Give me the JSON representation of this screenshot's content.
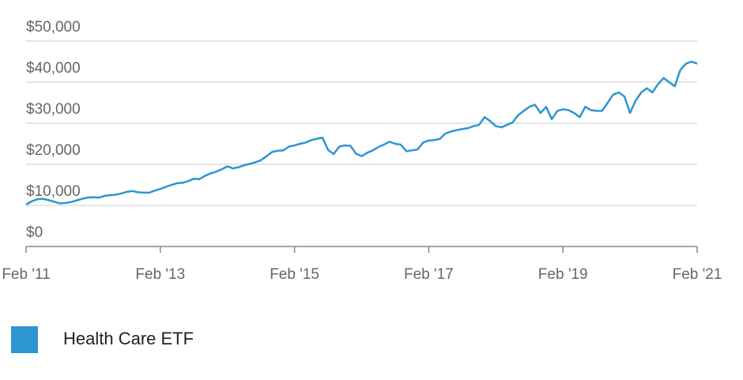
{
  "chart_data": {
    "type": "line",
    "x": [
      "2011-02",
      "2011-03",
      "2011-04",
      "2011-05",
      "2011-06",
      "2011-07",
      "2011-08",
      "2011-09",
      "2011-10",
      "2011-11",
      "2011-12",
      "2012-01",
      "2012-02",
      "2012-03",
      "2012-04",
      "2012-05",
      "2012-06",
      "2012-07",
      "2012-08",
      "2012-09",
      "2012-10",
      "2012-11",
      "2012-12",
      "2013-01",
      "2013-02",
      "2013-03",
      "2013-04",
      "2013-05",
      "2013-06",
      "2013-07",
      "2013-08",
      "2013-09",
      "2013-10",
      "2013-11",
      "2013-12",
      "2014-01",
      "2014-02",
      "2014-03",
      "2014-04",
      "2014-05",
      "2014-06",
      "2014-07",
      "2014-08",
      "2014-09",
      "2014-10",
      "2014-11",
      "2014-12",
      "2015-01",
      "2015-02",
      "2015-03",
      "2015-04",
      "2015-05",
      "2015-06",
      "2015-07",
      "2015-08",
      "2015-09",
      "2015-10",
      "2015-11",
      "2015-12",
      "2016-01",
      "2016-02",
      "2016-03",
      "2016-04",
      "2016-05",
      "2016-06",
      "2016-07",
      "2016-08",
      "2016-09",
      "2016-10",
      "2016-11",
      "2016-12",
      "2017-01",
      "2017-02",
      "2017-03",
      "2017-04",
      "2017-05",
      "2017-06",
      "2017-07",
      "2017-08",
      "2017-09",
      "2017-10",
      "2017-11",
      "2017-12",
      "2018-01",
      "2018-02",
      "2018-03",
      "2018-04",
      "2018-05",
      "2018-06",
      "2018-07",
      "2018-08",
      "2018-09",
      "2018-10",
      "2018-11",
      "2018-12",
      "2019-01",
      "2019-02",
      "2019-03",
      "2019-04",
      "2019-05",
      "2019-06",
      "2019-07",
      "2019-08",
      "2019-09",
      "2019-10",
      "2019-11",
      "2019-12",
      "2020-01",
      "2020-02",
      "2020-03",
      "2020-04",
      "2020-05",
      "2020-06",
      "2020-07",
      "2020-08",
      "2020-09",
      "2020-10",
      "2020-11",
      "2020-12",
      "2021-01",
      "2021-02"
    ],
    "series": [
      {
        "name": "Health Care ETF",
        "color": "#2e95d3",
        "values": [
          10200,
          11000,
          11500,
          11600,
          11300,
          10900,
          10500,
          10600,
          10800,
          11200,
          11600,
          11900,
          12000,
          11900,
          12300,
          12500,
          12600,
          12900,
          13300,
          13500,
          13200,
          13100,
          13100,
          13600,
          14000,
          14500,
          15000,
          15400,
          15500,
          15900,
          16500,
          16400,
          17200,
          17800,
          18200,
          18800,
          19500,
          19000,
          19300,
          19800,
          20100,
          20500,
          21000,
          22000,
          23000,
          23300,
          23400,
          24300,
          24600,
          25000,
          25300,
          25900,
          26200,
          26500,
          23500,
          22500,
          24300,
          24600,
          24500,
          22600,
          22000,
          22800,
          23400,
          24200,
          24800,
          25500,
          25000,
          24800,
          23200,
          23400,
          23600,
          25300,
          25800,
          25900,
          26200,
          27500,
          28000,
          28300,
          28600,
          28800,
          29300,
          29600,
          31500,
          30500,
          29300,
          29000,
          29600,
          30200,
          32000,
          33000,
          34000,
          34500,
          32500,
          34000,
          31000,
          33000,
          33400,
          33200,
          32500,
          31500,
          34000,
          33200,
          33000,
          33000,
          35000,
          37000,
          37500,
          36500,
          32500,
          35500,
          37500,
          38500,
          37500,
          39500,
          41000,
          40000,
          39000,
          43000,
          44500,
          45000,
          44500
        ]
      }
    ],
    "xlim": [
      "2011-02",
      "2021-02"
    ],
    "xticks": [
      {
        "value": "2011-02",
        "label": "Feb '11"
      },
      {
        "value": "2013-02",
        "label": "Feb '13"
      },
      {
        "value": "2015-02",
        "label": "Feb '15"
      },
      {
        "value": "2017-02",
        "label": "Feb '17"
      },
      {
        "value": "2019-02",
        "label": "Feb '19"
      },
      {
        "value": "2021-02",
        "label": "Feb '21"
      }
    ],
    "ylim": [
      0,
      50000
    ],
    "yticks": [
      {
        "value": 0,
        "label": "$0"
      },
      {
        "value": 10000,
        "label": "$10,000"
      },
      {
        "value": 20000,
        "label": "$20,000"
      },
      {
        "value": 30000,
        "label": "$30,000"
      },
      {
        "value": 40000,
        "label": "$40,000"
      },
      {
        "value": 50000,
        "label": "$50,000"
      }
    ],
    "grid": true
  }
}
